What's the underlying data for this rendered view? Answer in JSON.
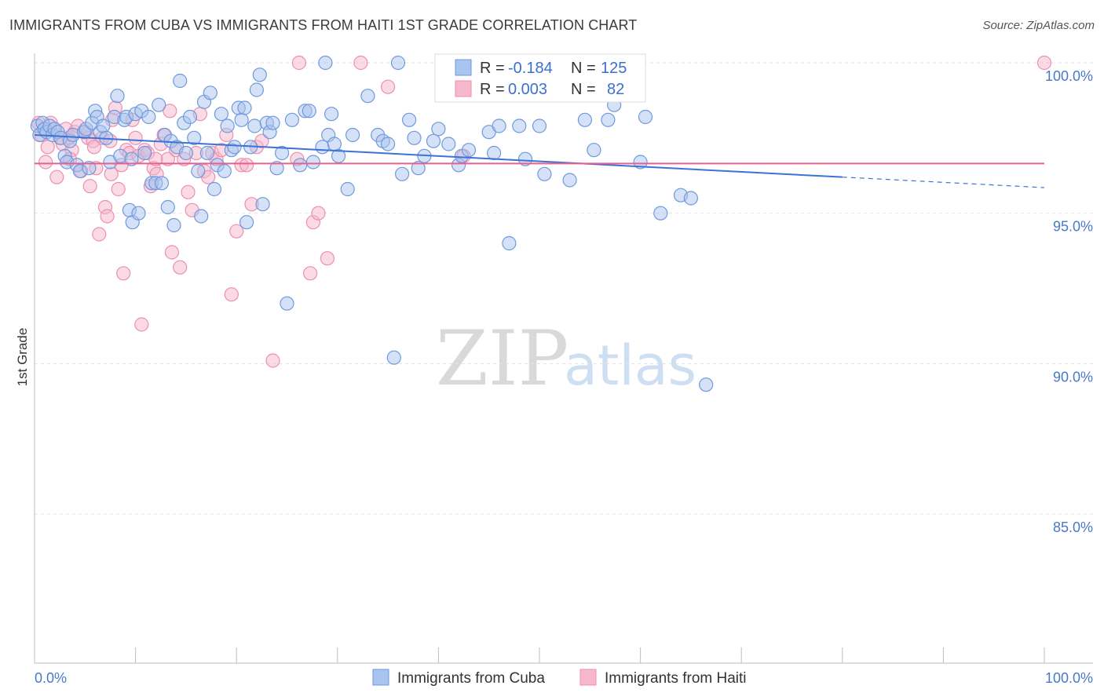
{
  "title": "IMMIGRANTS FROM CUBA VS IMMIGRANTS FROM HAITI 1ST GRADE CORRELATION CHART",
  "source": "Source: ZipAtlas.com",
  "colors": {
    "cuba_fill": "#a9c4ee",
    "cuba_stroke": "#6f99dd",
    "cuba_line": "#3b73d6",
    "haiti_fill": "#f5b8cc",
    "haiti_stroke": "#ec8fb0",
    "haiti_line": "#e8608f",
    "grid": "#e3e3e3",
    "tick_label": "#4a78c9"
  },
  "legend": {
    "rows": [
      {
        "r_label": "R =",
        "r_value": "-0.184",
        "n_label": "N =",
        "n_value": "125"
      },
      {
        "r_label": "R =",
        "r_value": "0.003",
        "n_label": "N =",
        "n_value": "82"
      }
    ]
  },
  "chart_data": {
    "type": "scatter",
    "title": "IMMIGRANTS FROM CUBA VS IMMIGRANTS FROM HAITI 1ST GRADE CORRELATION CHART",
    "xlabel": "",
    "ylabel": "1st Grade",
    "xlim": [
      0,
      100
    ],
    "ylim": [
      80.5,
      100.8
    ],
    "x_tick_labels": [
      "0.0%",
      "100.0%"
    ],
    "y_ticks": [
      100,
      95,
      90,
      85
    ],
    "y_tick_labels": [
      "100.0%",
      "95.0%",
      "90.0%",
      "85.0%"
    ],
    "watermark": {
      "zip": "ZIP",
      "atlas": "atlas"
    },
    "series": [
      {
        "name": "Immigrants from Cuba",
        "r": -0.184,
        "n": 125,
        "trend": {
          "x0": 0,
          "y0": 97.6,
          "x1": 80,
          "y1": 96.2,
          "x_dash_end": 100,
          "y_dash_end": 95.85
        },
        "points": [
          [
            0.3,
            97.9
          ],
          [
            0.5,
            97.6
          ],
          [
            0.8,
            98.0
          ],
          [
            1.0,
            97.8
          ],
          [
            1.2,
            97.7
          ],
          [
            1.5,
            97.9
          ],
          [
            1.8,
            97.6
          ],
          [
            2.0,
            97.8
          ],
          [
            2.3,
            97.7
          ],
          [
            2.6,
            97.5
          ],
          [
            3.0,
            96.9
          ],
          [
            3.2,
            96.7
          ],
          [
            3.5,
            97.4
          ],
          [
            3.8,
            97.6
          ],
          [
            4.2,
            96.6
          ],
          [
            4.5,
            96.4
          ],
          [
            4.9,
            97.7
          ],
          [
            5.1,
            97.8
          ],
          [
            5.4,
            96.5
          ],
          [
            5.7,
            98.0
          ],
          [
            6.0,
            98.4
          ],
          [
            6.2,
            98.2
          ],
          [
            6.5,
            97.7
          ],
          [
            6.8,
            97.9
          ],
          [
            7.1,
            97.5
          ],
          [
            7.5,
            96.7
          ],
          [
            7.9,
            98.2
          ],
          [
            8.2,
            98.9
          ],
          [
            8.5,
            96.9
          ],
          [
            8.9,
            98.1
          ],
          [
            9.1,
            98.2
          ],
          [
            9.4,
            95.1
          ],
          [
            9.7,
            94.7
          ],
          [
            10.0,
            98.3
          ],
          [
            10.3,
            95.0
          ],
          [
            10.6,
            98.4
          ],
          [
            10.9,
            97.0
          ],
          [
            11.3,
            98.2
          ],
          [
            11.6,
            96.0
          ],
          [
            12.0,
            96.0
          ],
          [
            12.3,
            98.6
          ],
          [
            12.6,
            96.0
          ],
          [
            12.9,
            97.6
          ],
          [
            13.2,
            95.2
          ],
          [
            13.5,
            97.4
          ],
          [
            13.8,
            94.6
          ],
          [
            14.1,
            97.2
          ],
          [
            14.4,
            99.4
          ],
          [
            14.8,
            98.0
          ],
          [
            15.0,
            97.0
          ],
          [
            15.4,
            98.2
          ],
          [
            15.8,
            97.5
          ],
          [
            16.2,
            96.4
          ],
          [
            16.5,
            94.9
          ],
          [
            16.8,
            98.7
          ],
          [
            17.1,
            97.0
          ],
          [
            17.4,
            99.0
          ],
          [
            17.8,
            95.8
          ],
          [
            18.1,
            96.6
          ],
          [
            18.5,
            98.3
          ],
          [
            18.8,
            96.4
          ],
          [
            19.1,
            97.9
          ],
          [
            19.5,
            97.1
          ],
          [
            19.8,
            97.2
          ],
          [
            20.2,
            98.5
          ],
          [
            20.5,
            98.1
          ],
          [
            20.8,
            98.5
          ],
          [
            21.0,
            94.7
          ],
          [
            21.4,
            97.2
          ],
          [
            21.8,
            97.9
          ],
          [
            22.3,
            99.6
          ],
          [
            22.6,
            95.3
          ],
          [
            23.0,
            98.0
          ],
          [
            23.3,
            97.7
          ],
          [
            23.6,
            98.0
          ],
          [
            24.0,
            96.5
          ],
          [
            24.5,
            97.0
          ],
          [
            25.0,
            92.0
          ],
          [
            25.5,
            98.1
          ],
          [
            26.3,
            96.6
          ],
          [
            26.8,
            98.4
          ],
          [
            27.2,
            98.4
          ],
          [
            27.6,
            96.7
          ],
          [
            28.5,
            97.2
          ],
          [
            28.8,
            100.0
          ],
          [
            29.1,
            97.6
          ],
          [
            29.4,
            98.3
          ],
          [
            29.7,
            97.3
          ],
          [
            30.1,
            96.9
          ],
          [
            31.0,
            95.8
          ],
          [
            33.0,
            98.9
          ],
          [
            34.0,
            97.6
          ],
          [
            34.5,
            97.4
          ],
          [
            35.0,
            97.3
          ],
          [
            35.6,
            90.2
          ],
          [
            36.0,
            100.0
          ],
          [
            36.4,
            96.3
          ],
          [
            37.1,
            98.1
          ],
          [
            37.6,
            97.5
          ],
          [
            38.0,
            96.5
          ],
          [
            38.6,
            96.9
          ],
          [
            39.5,
            97.4
          ],
          [
            40.0,
            97.8
          ],
          [
            41.0,
            97.3
          ],
          [
            42.0,
            96.6
          ],
          [
            42.3,
            96.9
          ],
          [
            43.0,
            97.1
          ],
          [
            45.0,
            97.7
          ],
          [
            46.0,
            97.9
          ],
          [
            47.0,
            94.0
          ],
          [
            48.0,
            97.9
          ],
          [
            48.6,
            96.8
          ],
          [
            50.0,
            97.9
          ],
          [
            50.5,
            96.3
          ],
          [
            53.0,
            96.1
          ],
          [
            54.5,
            98.1
          ],
          [
            55.4,
            97.1
          ],
          [
            56.8,
            98.1
          ],
          [
            57.4,
            98.6
          ],
          [
            60.0,
            96.7
          ],
          [
            62.0,
            95.0
          ],
          [
            64.0,
            95.6
          ],
          [
            65.0,
            95.5
          ],
          [
            66.5,
            89.3
          ],
          [
            60.5,
            98.2
          ],
          [
            22.0,
            99.1
          ],
          [
            9.6,
            96.8
          ],
          [
            31.5,
            97.6
          ],
          [
            45.5,
            97.0
          ]
        ]
      },
      {
        "name": "Immigrants from Haiti",
        "r": 0.003,
        "n": 82,
        "trend": {
          "x0": 0,
          "y0": 96.65,
          "x1": 100,
          "y1": 96.65
        },
        "points": [
          [
            0.4,
            98.0
          ],
          [
            0.7,
            97.6
          ],
          [
            0.9,
            97.8
          ],
          [
            1.1,
            96.7
          ],
          [
            1.3,
            97.2
          ],
          [
            1.6,
            98.0
          ],
          [
            1.9,
            97.8
          ],
          [
            2.2,
            96.2
          ],
          [
            2.5,
            97.5
          ],
          [
            2.8,
            97.3
          ],
          [
            3.1,
            97.8
          ],
          [
            3.4,
            97.5
          ],
          [
            3.7,
            97.1
          ],
          [
            4.0,
            97.7
          ],
          [
            4.3,
            97.9
          ],
          [
            4.6,
            96.4
          ],
          [
            5.0,
            97.7
          ],
          [
            5.3,
            97.5
          ],
          [
            5.5,
            95.9
          ],
          [
            5.8,
            97.4
          ],
          [
            6.1,
            96.5
          ],
          [
            6.4,
            94.3
          ],
          [
            6.7,
            97.5
          ],
          [
            7.0,
            95.2
          ],
          [
            7.2,
            94.9
          ],
          [
            7.5,
            97.4
          ],
          [
            7.7,
            98.1
          ],
          [
            8.0,
            98.5
          ],
          [
            8.3,
            95.8
          ],
          [
            8.6,
            96.6
          ],
          [
            8.8,
            93.0
          ],
          [
            9.1,
            97.1
          ],
          [
            9.4,
            97.0
          ],
          [
            9.7,
            98.1
          ],
          [
            10.0,
            97.5
          ],
          [
            10.3,
            96.9
          ],
          [
            10.6,
            91.3
          ],
          [
            10.9,
            97.1
          ],
          [
            11.2,
            97.0
          ],
          [
            11.5,
            95.9
          ],
          [
            11.8,
            96.5
          ],
          [
            12.1,
            96.3
          ],
          [
            12.5,
            97.3
          ],
          [
            12.8,
            97.6
          ],
          [
            13.2,
            96.8
          ],
          [
            13.6,
            93.7
          ],
          [
            14.0,
            97.1
          ],
          [
            14.4,
            93.2
          ],
          [
            14.8,
            96.8
          ],
          [
            15.2,
            95.7
          ],
          [
            15.6,
            95.1
          ],
          [
            16.0,
            97.0
          ],
          [
            16.4,
            98.3
          ],
          [
            16.8,
            96.4
          ],
          [
            17.2,
            96.2
          ],
          [
            17.6,
            97.0
          ],
          [
            18.0,
            96.8
          ],
          [
            18.5,
            97.1
          ],
          [
            19.0,
            97.6
          ],
          [
            19.5,
            92.3
          ],
          [
            20.0,
            94.4
          ],
          [
            20.5,
            96.6
          ],
          [
            21.0,
            96.6
          ],
          [
            21.5,
            95.3
          ],
          [
            22.0,
            97.2
          ],
          [
            22.5,
            97.4
          ],
          [
            23.6,
            90.1
          ],
          [
            26.0,
            96.8
          ],
          [
            27.3,
            93.0
          ],
          [
            27.6,
            94.7
          ],
          [
            28.1,
            95.0
          ],
          [
            29.0,
            93.5
          ],
          [
            26.2,
            100.0
          ],
          [
            32.3,
            100.0
          ],
          [
            35.0,
            99.2
          ],
          [
            42.5,
            96.9
          ],
          [
            100.0,
            100.0
          ],
          [
            13.4,
            98.4
          ],
          [
            12.0,
            96.8
          ],
          [
            7.6,
            96.3
          ],
          [
            3.5,
            96.8
          ],
          [
            5.9,
            97.2
          ]
        ]
      }
    ]
  }
}
